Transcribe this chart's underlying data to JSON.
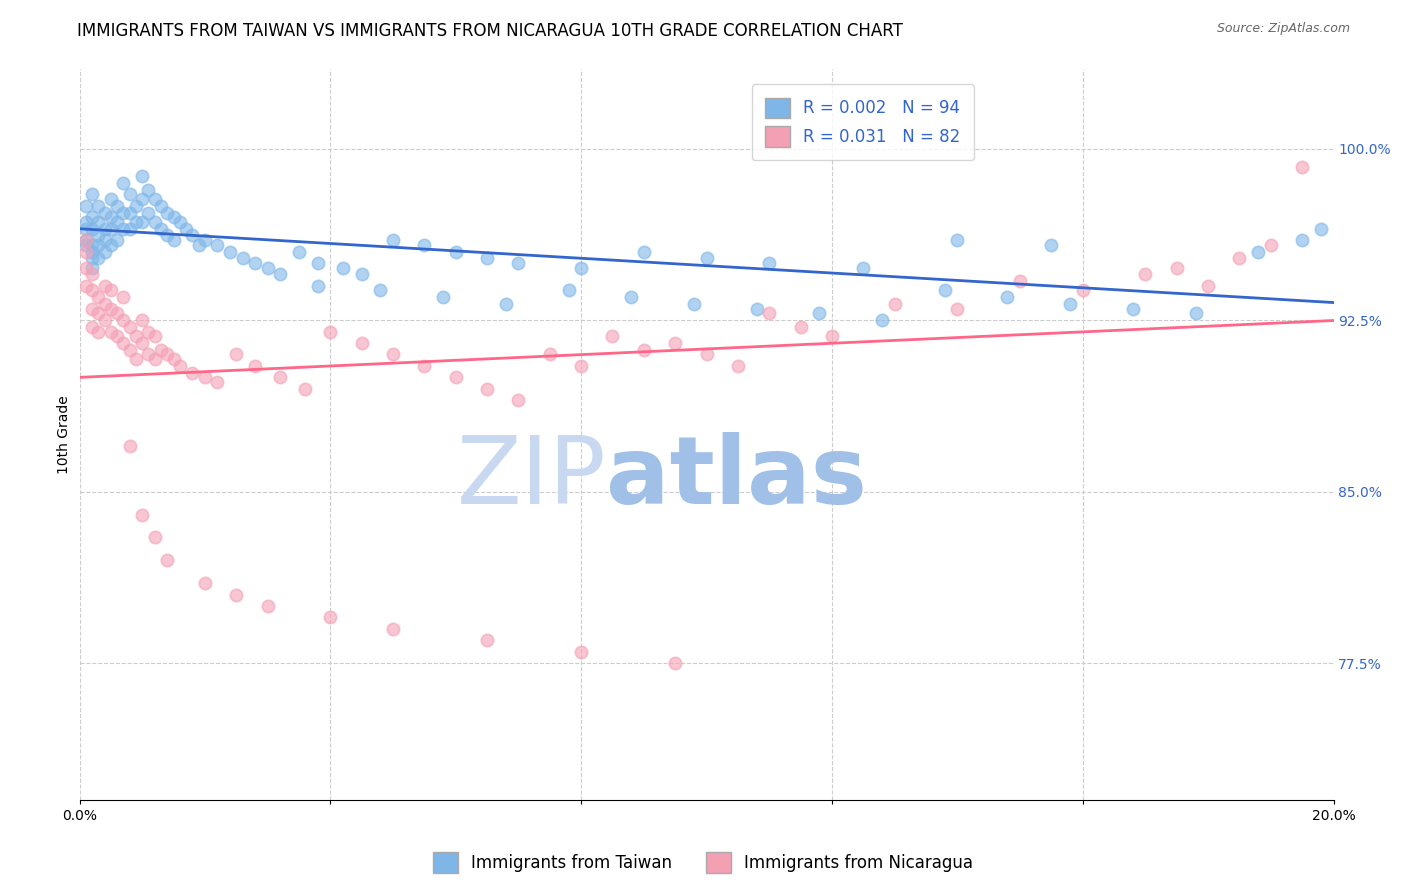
{
  "title": "IMMIGRANTS FROM TAIWAN VS IMMIGRANTS FROM NICARAGUA 10TH GRADE CORRELATION CHART",
  "source": "Source: ZipAtlas.com",
  "ylabel": "10th Grade",
  "ytick_labels": [
    "100.0%",
    "92.5%",
    "85.0%",
    "77.5%"
  ],
  "ytick_values": [
    1.0,
    0.925,
    0.85,
    0.775
  ],
  "xlim": [
    0.0,
    0.2
  ],
  "ylim": [
    0.715,
    1.035
  ],
  "taiwan_R": "0.002",
  "taiwan_N": "94",
  "nicaragua_R": "0.031",
  "nicaragua_N": "82",
  "taiwan_color": "#7EB6E8",
  "nicaragua_color": "#F4A0B4",
  "taiwan_line_color": "#3366CC",
  "nicaragua_line_color": "#FF6688",
  "taiwan_scatter_x": [
    0.001,
    0.001,
    0.001,
    0.001,
    0.001,
    0.002,
    0.002,
    0.002,
    0.002,
    0.002,
    0.002,
    0.002,
    0.003,
    0.003,
    0.003,
    0.003,
    0.003,
    0.004,
    0.004,
    0.004,
    0.004,
    0.005,
    0.005,
    0.005,
    0.005,
    0.006,
    0.006,
    0.006,
    0.007,
    0.007,
    0.007,
    0.008,
    0.008,
    0.008,
    0.009,
    0.009,
    0.01,
    0.01,
    0.01,
    0.011,
    0.011,
    0.012,
    0.012,
    0.013,
    0.013,
    0.014,
    0.014,
    0.015,
    0.015,
    0.016,
    0.017,
    0.018,
    0.019,
    0.02,
    0.022,
    0.024,
    0.026,
    0.028,
    0.03,
    0.032,
    0.035,
    0.038,
    0.042,
    0.045,
    0.05,
    0.055,
    0.06,
    0.065,
    0.07,
    0.08,
    0.09,
    0.1,
    0.11,
    0.125,
    0.14,
    0.155,
    0.038,
    0.048,
    0.058,
    0.068,
    0.078,
    0.088,
    0.098,
    0.108,
    0.118,
    0.128,
    0.138,
    0.148,
    0.158,
    0.168,
    0.178,
    0.188,
    0.195,
    0.198
  ],
  "taiwan_scatter_y": [
    0.965,
    0.968,
    0.975,
    0.96,
    0.958,
    0.98,
    0.97,
    0.965,
    0.958,
    0.955,
    0.952,
    0.948,
    0.975,
    0.968,
    0.962,
    0.958,
    0.952,
    0.972,
    0.965,
    0.96,
    0.955,
    0.978,
    0.97,
    0.965,
    0.958,
    0.975,
    0.968,
    0.96,
    0.985,
    0.972,
    0.965,
    0.98,
    0.972,
    0.965,
    0.975,
    0.968,
    0.988,
    0.978,
    0.968,
    0.982,
    0.972,
    0.978,
    0.968,
    0.975,
    0.965,
    0.972,
    0.962,
    0.97,
    0.96,
    0.968,
    0.965,
    0.962,
    0.958,
    0.96,
    0.958,
    0.955,
    0.952,
    0.95,
    0.948,
    0.945,
    0.955,
    0.95,
    0.948,
    0.945,
    0.96,
    0.958,
    0.955,
    0.952,
    0.95,
    0.948,
    0.955,
    0.952,
    0.95,
    0.948,
    0.96,
    0.958,
    0.94,
    0.938,
    0.935,
    0.932,
    0.938,
    0.935,
    0.932,
    0.93,
    0.928,
    0.925,
    0.938,
    0.935,
    0.932,
    0.93,
    0.928,
    0.955,
    0.96,
    0.965
  ],
  "nicaragua_scatter_x": [
    0.001,
    0.001,
    0.001,
    0.001,
    0.002,
    0.002,
    0.002,
    0.002,
    0.003,
    0.003,
    0.003,
    0.004,
    0.004,
    0.004,
    0.005,
    0.005,
    0.005,
    0.006,
    0.006,
    0.007,
    0.007,
    0.007,
    0.008,
    0.008,
    0.009,
    0.009,
    0.01,
    0.01,
    0.011,
    0.011,
    0.012,
    0.012,
    0.013,
    0.014,
    0.015,
    0.016,
    0.018,
    0.02,
    0.022,
    0.025,
    0.028,
    0.032,
    0.036,
    0.04,
    0.045,
    0.05,
    0.055,
    0.06,
    0.065,
    0.07,
    0.075,
    0.08,
    0.085,
    0.09,
    0.095,
    0.1,
    0.105,
    0.11,
    0.115,
    0.12,
    0.13,
    0.14,
    0.15,
    0.16,
    0.17,
    0.175,
    0.18,
    0.185,
    0.19,
    0.195,
    0.008,
    0.01,
    0.012,
    0.014,
    0.02,
    0.025,
    0.03,
    0.04,
    0.05,
    0.065,
    0.08,
    0.095
  ],
  "nicaragua_scatter_y": [
    0.96,
    0.955,
    0.948,
    0.94,
    0.945,
    0.938,
    0.93,
    0.922,
    0.935,
    0.928,
    0.92,
    0.94,
    0.932,
    0.925,
    0.938,
    0.93,
    0.92,
    0.928,
    0.918,
    0.935,
    0.925,
    0.915,
    0.922,
    0.912,
    0.918,
    0.908,
    0.925,
    0.915,
    0.92,
    0.91,
    0.918,
    0.908,
    0.912,
    0.91,
    0.908,
    0.905,
    0.902,
    0.9,
    0.898,
    0.91,
    0.905,
    0.9,
    0.895,
    0.92,
    0.915,
    0.91,
    0.905,
    0.9,
    0.895,
    0.89,
    0.91,
    0.905,
    0.918,
    0.912,
    0.915,
    0.91,
    0.905,
    0.928,
    0.922,
    0.918,
    0.932,
    0.93,
    0.942,
    0.938,
    0.945,
    0.948,
    0.94,
    0.952,
    0.958,
    0.992,
    0.87,
    0.84,
    0.83,
    0.82,
    0.81,
    0.805,
    0.8,
    0.795,
    0.79,
    0.785,
    0.78,
    0.775
  ],
  "legend_taiwan_label": "Immigrants from Taiwan",
  "legend_nicaragua_label": "Immigrants from Nicaragua",
  "watermark_zip": "ZIP",
  "watermark_atlas": "atlas",
  "watermark_zip_color": "#C8D8F0",
  "watermark_atlas_color": "#A0C0E8",
  "background_color": "#FFFFFF",
  "grid_color": "#CCCCCC",
  "title_fontsize": 12,
  "label_fontsize": 10,
  "tick_fontsize": 10,
  "legend_fontsize": 12,
  "marker_size": 80,
  "x_grid_ticks": [
    0.0,
    0.04,
    0.08,
    0.12,
    0.16,
    0.2
  ]
}
